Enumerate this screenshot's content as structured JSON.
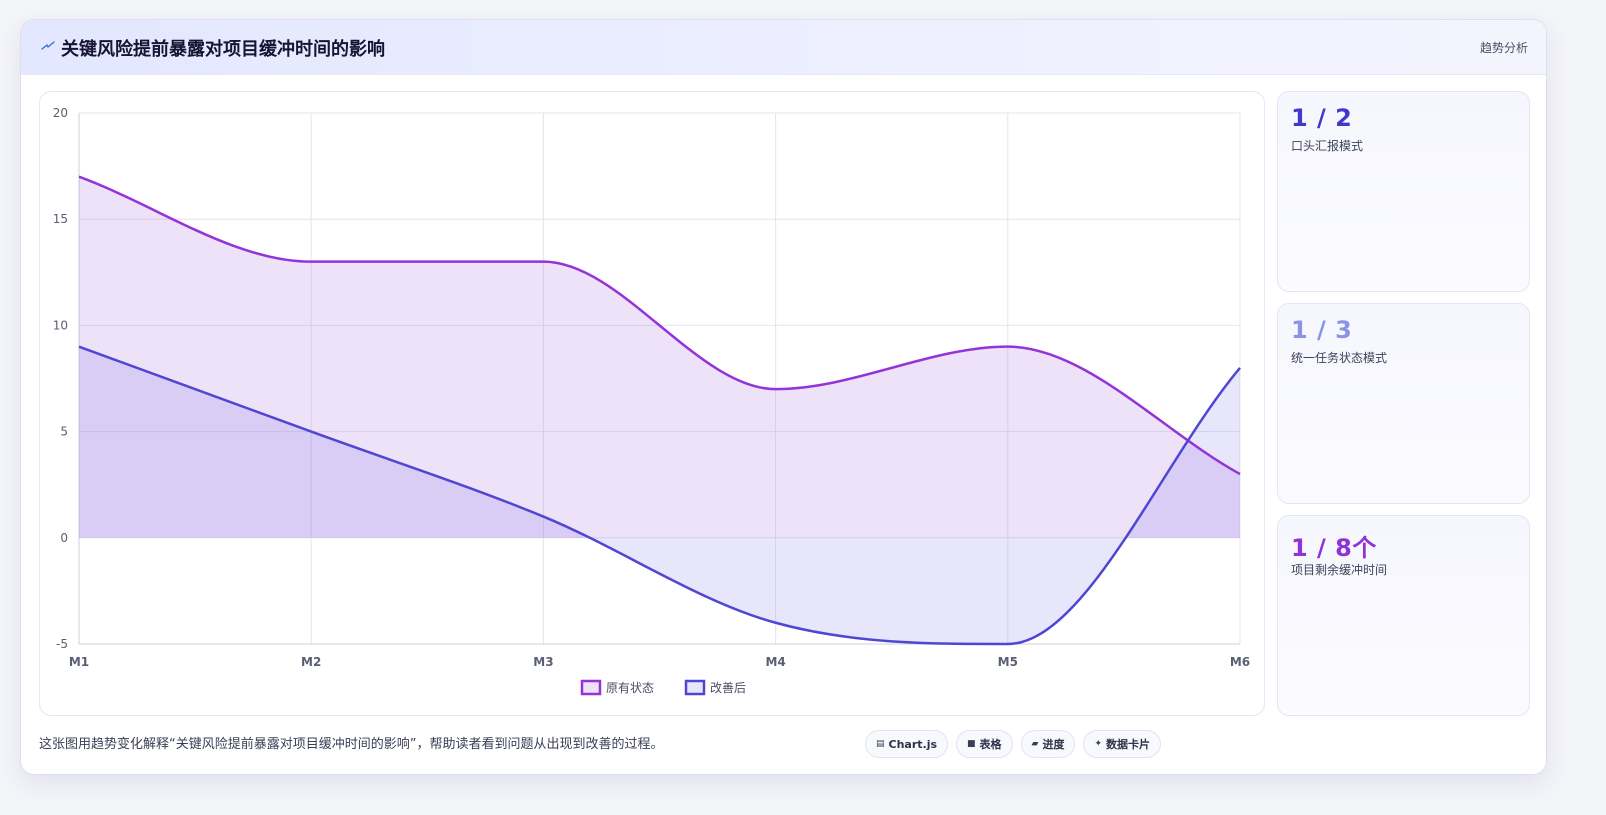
{
  "header": {
    "title": "关键风险提前暴露对项目缓冲时间的影响",
    "tag": "趋势分析"
  },
  "colors": {
    "series_a": "#9333d8",
    "series_b": "#4f46d4",
    "card1_value": "#4338ca",
    "card2_value": "#8b93e6",
    "card3_value": "#8f32d6"
  },
  "cards": [
    {
      "value": "1 / 2",
      "label": "口头汇报模式"
    },
    {
      "value": "1 / 3",
      "label": "统一任务状态模式"
    },
    {
      "value": "1 / 8个",
      "label": "项目剩余缓冲时间"
    }
  ],
  "footer": {
    "text": "这张图用趋势变化解释“关键风险提前暴露对项目缓冲时间的影响”，帮助读者看到问题从出现到改善的过程。",
    "chips": [
      {
        "icon": "chart-icon",
        "label": "Chart.js"
      },
      {
        "icon": "table-icon",
        "label": "表格"
      },
      {
        "icon": "progress-icon",
        "label": "进度"
      },
      {
        "icon": "sparkle-icon",
        "label": "数据卡片"
      }
    ]
  },
  "chart_data": {
    "type": "area",
    "x": [
      "M1",
      "M2",
      "M3",
      "M4",
      "M5",
      "M6"
    ],
    "ylim": [
      -5,
      20
    ],
    "yticks": [
      -5,
      0,
      5,
      10,
      15,
      20
    ],
    "grid": true,
    "legend_position": "bottom",
    "series": [
      {
        "name": "原有状态",
        "values": [
          17,
          13,
          13,
          7,
          9,
          3
        ]
      },
      {
        "name": "改善后",
        "values": [
          9,
          5,
          1,
          -4,
          -5,
          8
        ]
      }
    ]
  }
}
